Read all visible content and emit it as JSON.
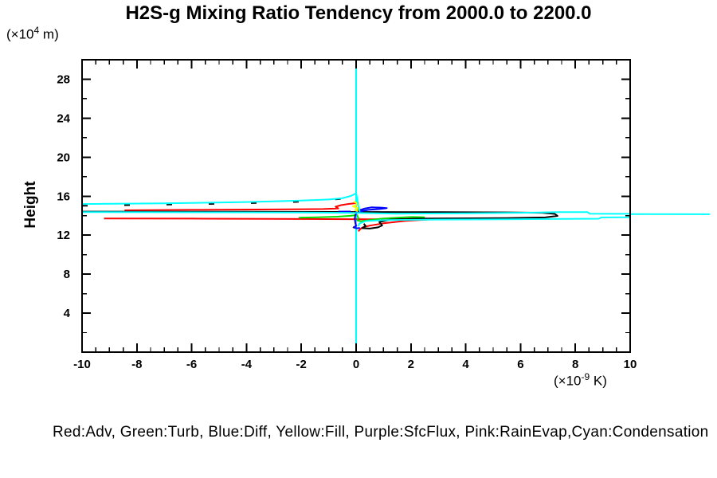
{
  "page": {
    "background": "#FFFFFF"
  },
  "chart_data": {
    "type": "line",
    "title": "H2S-g Mixing Ratio Tendency from 2000.0 to 2200.0",
    "legend_text": "Red:Adv, Green:Turb, Blue:Diff, Yellow:Fill, Purple:SfcFlux, Pink:RainEvap,Cyan:Condensation",
    "grid": false,
    "y_axis": {
      "label": "Height",
      "unit_prefix": "(×10",
      "unit_exp": "4",
      "unit_suffix": " m)",
      "lim": [
        0,
        30
      ],
      "major_ticks": [
        4,
        8,
        12,
        16,
        20,
        24,
        28
      ],
      "major_tick_labels": [
        "4",
        "8",
        "12",
        "16",
        "20",
        "24",
        "28"
      ],
      "minor_step": 2
    },
    "x_axis": {
      "label": "",
      "unit_prefix": "(×10",
      "unit_exp": "-9",
      "unit_suffix": " K)",
      "lim": [
        -10,
        10
      ],
      "major_ticks": [
        -10,
        -8,
        -6,
        -4,
        -2,
        0,
        2,
        4,
        6,
        8,
        10
      ],
      "major_tick_labels": [
        "-10",
        "-8",
        "-6",
        "-4",
        "-2",
        "0",
        "2",
        "4",
        "6",
        "8",
        "10"
      ],
      "minor_step": 0.5
    },
    "zero_line": {
      "x": 0,
      "color": "#00FFFF"
    },
    "series": [
      {
        "name": "red",
        "label": "Adv",
        "color": "#FF0000",
        "strokes": [
          {
            "points": [
              [
                -8.45,
                14.55
              ],
              [
                -6,
                14.6
              ],
              [
                -3,
                14.64
              ],
              [
                -1.2,
                14.68
              ],
              [
                -0.65,
                14.75
              ],
              [
                -0.75,
                14.92
              ],
              [
                -0.55,
                15.08
              ],
              [
                -0.3,
                15.2
              ],
              [
                -0.05,
                15.28
              ],
              [
                0.1,
                15.33
              ]
            ]
          },
          {
            "points": [
              [
                -9.2,
                13.72
              ],
              [
                -6,
                13.7
              ],
              [
                -3,
                13.67
              ],
              [
                -1,
                13.65
              ],
              [
                0.5,
                13.63
              ],
              [
                1.5,
                13.66
              ],
              [
                2.4,
                13.69
              ],
              [
                3.4,
                13.7
              ],
              [
                2.6,
                13.6
              ],
              [
                1.8,
                13.47
              ],
              [
                1.0,
                13.22
              ],
              [
                0.5,
                12.98
              ],
              [
                0.28,
                12.84
              ],
              [
                0.18,
                12.7
              ],
              [
                0.12,
                12.52
              ],
              [
                0.08,
                12.4
              ]
            ]
          }
        ]
      },
      {
        "name": "green",
        "label": "Turb",
        "color": "#00DD00",
        "strokes": [
          {
            "points": [
              [
                -2.1,
                13.8
              ],
              [
                -1.4,
                13.84
              ],
              [
                -0.7,
                13.9
              ],
              [
                -0.25,
                13.98
              ],
              [
                0.03,
                14.06
              ],
              [
                0.08,
                13.78
              ],
              [
                0.04,
                13.52
              ],
              [
                0.18,
                13.42
              ],
              [
                0.5,
                13.55
              ],
              [
                0.95,
                13.7
              ],
              [
                1.5,
                13.8
              ],
              [
                2.05,
                13.86
              ],
              [
                2.5,
                13.84
              ]
            ]
          }
        ]
      },
      {
        "name": "black",
        "label": "",
        "color": "#000000",
        "strokes": [
          {
            "points": [
              [
                -10,
                14.42
              ],
              [
                -4,
                14.4
              ],
              [
                0.5,
                14.38
              ],
              [
                3,
                14.36
              ],
              [
                5.5,
                14.34
              ],
              [
                6.8,
                14.3
              ],
              [
                7.25,
                14.18
              ],
              [
                7.35,
                13.98
              ],
              [
                6.9,
                13.82
              ],
              [
                5.5,
                13.75
              ],
              [
                2.2,
                13.7
              ],
              [
                1.25,
                13.6
              ],
              [
                0.85,
                13.35
              ],
              [
                0.95,
                13.0
              ],
              [
                0.8,
                12.8
              ],
              [
                0.5,
                12.68
              ],
              [
                0.22,
                12.72
              ],
              [
                0.35,
                12.95
              ],
              [
                0.28,
                13.18
              ]
            ]
          },
          {
            "points": [
              [
                -10,
                15.02
              ],
              [
                -8,
                15.1
              ],
              [
                -5,
                15.22
              ],
              [
                -3,
                15.34
              ],
              [
                -1.5,
                15.48
              ],
              [
                -0.6,
                15.72
              ],
              [
                -0.2,
                15.97
              ]
            ],
            "dash": true
          }
        ]
      },
      {
        "name": "blue",
        "label": "Diff",
        "color": "#0000FF",
        "strokes": [
          {
            "points": [
              [
                -0.65,
                14.42
              ],
              [
                -0.2,
                14.43
              ]
            ]
          },
          {
            "points": [
              [
                -0.05,
                14.45
              ],
              [
                0.12,
                14.55
              ],
              [
                0.3,
                14.72
              ],
              [
                0.55,
                14.85
              ],
              [
                0.9,
                14.83
              ],
              [
                1.12,
                14.78
              ],
              [
                0.85,
                14.68
              ],
              [
                0.45,
                14.6
              ],
              [
                0.2,
                14.48
              ],
              [
                0.05,
                14.35
              ],
              [
                -0.03,
                14.1
              ],
              [
                -0.05,
                13.7
              ],
              [
                -0.03,
                13.25
              ],
              [
                0.0,
                12.95
              ],
              [
                -0.1,
                12.8
              ],
              [
                0.03,
                12.7
              ],
              [
                0.14,
                12.74
              ]
            ]
          }
        ]
      },
      {
        "name": "yellow",
        "label": "Fill",
        "color": "#FFFF00",
        "strokes": [
          {
            "points": [
              [
                -0.1,
                15.45
              ],
              [
                0.08,
                15.2
              ],
              [
                -0.12,
                14.95
              ],
              [
                0.1,
                14.72
              ],
              [
                -0.05,
                14.58
              ],
              [
                0.06,
                14.45
              ]
            ]
          }
        ]
      },
      {
        "name": "purple",
        "label": "SfcFlux",
        "color": "#9900CC",
        "strokes": []
      },
      {
        "name": "pink",
        "label": "RainEvap",
        "color": "#FF66CC",
        "strokes": []
      },
      {
        "name": "cyan",
        "label": "Condensation",
        "color": "#00FFFF",
        "strokes": [
          {
            "points": [
              [
                -10,
                15.2
              ],
              [
                -7,
                15.27
              ],
              [
                -4,
                15.4
              ],
              [
                -2,
                15.55
              ],
              [
                -1,
                15.66
              ],
              [
                -0.5,
                15.8
              ],
              [
                -0.2,
                16.02
              ],
              [
                0,
                16.3
              ],
              [
                0.05,
                15.5
              ],
              [
                0.1,
                14.65
              ],
              [
                0.14,
                14.4
              ]
            ]
          },
          {
            "points": [
              [
                -10,
                14.37
              ],
              [
                -5,
                14.35
              ],
              [
                -2,
                14.33
              ],
              [
                0,
                14.29
              ],
              [
                1.5,
                14.21
              ],
              [
                4,
                14.24
              ],
              [
                6,
                14.3
              ],
              [
                7.4,
                14.37
              ],
              [
                8.44,
                14.37
              ],
              [
                8.52,
                14.2
              ],
              [
                10,
                14.19
              ]
            ]
          },
          {
            "points": [
              [
                0.06,
                12.9
              ],
              [
                0.12,
                13.2
              ],
              [
                0.35,
                13.45
              ],
              [
                1,
                13.55
              ],
              [
                3,
                13.6
              ],
              [
                5.5,
                13.63
              ],
              [
                7,
                13.66
              ],
              [
                8.85,
                13.69
              ],
              [
                8.95,
                13.82
              ],
              [
                10,
                13.84
              ]
            ]
          },
          {
            "points": [
              [
                10,
                14.17
              ],
              [
                12.9,
                14.15
              ]
            ]
          }
        ]
      }
    ]
  }
}
